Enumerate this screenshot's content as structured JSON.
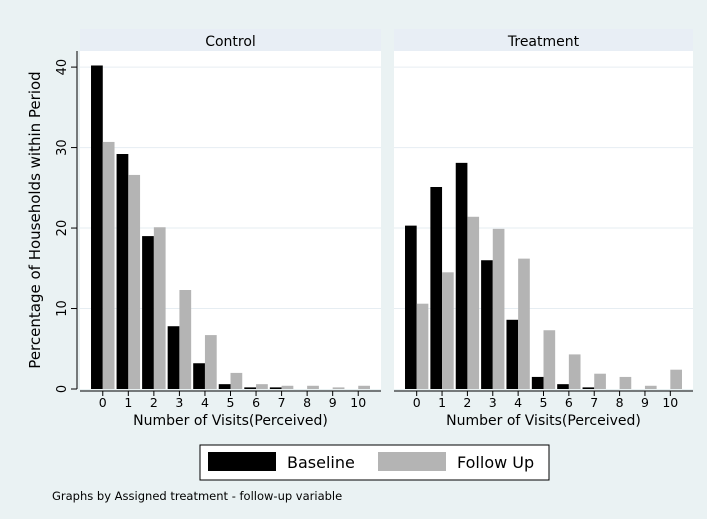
{
  "chart_data": {
    "type": "bar",
    "ylabel": "Percentage of Households within Period",
    "xlabel": "Number of Visits(Perceived)",
    "ylim": [
      0,
      42
    ],
    "yticks": [
      0,
      10,
      20,
      30,
      40
    ],
    "categories": [
      "0",
      "1",
      "2",
      "3",
      "4",
      "5",
      "6",
      "7",
      "8",
      "9",
      "10"
    ],
    "legend": {
      "position": "bottom",
      "entries": [
        "Baseline",
        "Follow Up"
      ]
    },
    "note": "Graphs by Assigned treatment - follow-up variable",
    "colors": {
      "Baseline": "#000000",
      "Follow Up": "#b4b4b4",
      "panel_header": "#e8eef5",
      "plot_bg": "#ffffff",
      "outer_bg": "#eaf2f3",
      "grid": "#e6edf2"
    },
    "panels": [
      {
        "title": "Control",
        "series": [
          {
            "name": "Baseline",
            "values": [
              40.2,
              29.2,
              19.0,
              7.8,
              3.2,
              0.6,
              0.2,
              0.2,
              0,
              0,
              0
            ]
          },
          {
            "name": "Follow Up",
            "values": [
              30.7,
              26.6,
              20.1,
              12.3,
              6.7,
              2.0,
              0.6,
              0.4,
              0.4,
              0.2,
              0.4
            ]
          }
        ]
      },
      {
        "title": "Treatment",
        "series": [
          {
            "name": "Baseline",
            "values": [
              20.3,
              25.1,
              28.1,
              16.0,
              8.6,
              1.5,
              0.6,
              0.2,
              0,
              0,
              0
            ]
          },
          {
            "name": "Follow Up",
            "values": [
              10.6,
              14.5,
              21.4,
              19.9,
              16.2,
              7.3,
              4.3,
              1.9,
              1.5,
              0.4,
              2.4
            ]
          }
        ]
      }
    ]
  }
}
